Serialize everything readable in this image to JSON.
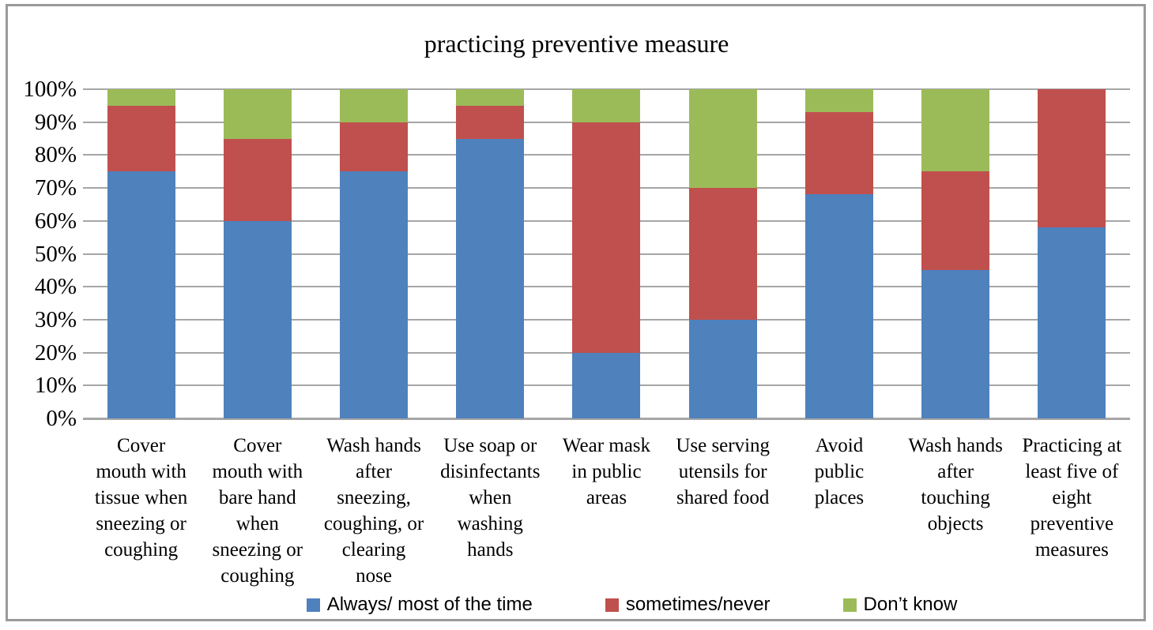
{
  "title": "practicing preventive measure",
  "chart_data": {
    "type": "bar",
    "variant": "100%-stacked-column",
    "title": "practicing preventive measure",
    "grid": true,
    "legend_position": "bottom",
    "ylim": [
      0,
      100
    ],
    "y_ticks": [
      "100%",
      "90%",
      "80%",
      "70%",
      "60%",
      "50%",
      "40%",
      "30%",
      "20%",
      "10%",
      "0%"
    ],
    "categories": [
      "Cover\nmouth with\ntissue when\nsneezing or\ncoughing",
      "Cover\nmouth with\nbare hand\nwhen\nsneezing or\ncoughing",
      "Wash hands\nafter\nsneezing,\ncoughing, or\nclearing\nnose",
      "Use soap or\ndisinfectants\nwhen\nwashing\nhands",
      "Wear mask\nin public\nareas",
      "Use serving\nutensils for\nshared food",
      "Avoid\npublic\nplaces",
      "Wash hands\nafter\ntouching\nobjects",
      "Practicing at\nleast five of\neight\npreventive\nmeasures"
    ],
    "series": [
      {
        "name": "Always/ most of the time",
        "color": "#4F81BD",
        "values": [
          75,
          60,
          75,
          85,
          20,
          30,
          68,
          45,
          58
        ]
      },
      {
        "name": "sometimes/never",
        "color": "#C0504D",
        "values": [
          20,
          25,
          15,
          10,
          70,
          40,
          25,
          30,
          42
        ]
      },
      {
        "name": "Don’t know",
        "color": "#9BBB59",
        "values": [
          5,
          15,
          10,
          5,
          10,
          30,
          7,
          25,
          0
        ]
      }
    ]
  }
}
